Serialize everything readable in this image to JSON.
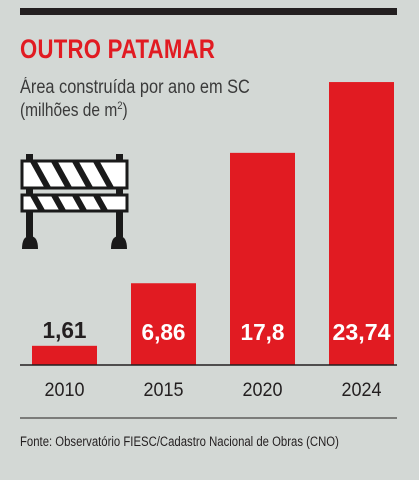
{
  "header": {
    "title": "OUTRO PATAMAR",
    "subtitle_line1": "Área construída por ano em SC",
    "subtitle_line2_prefix": "(milhões de m",
    "subtitle_line2_sup": "2",
    "subtitle_line2_suffix": ")"
  },
  "footer": {
    "source": "Fonte: Observatório FIESC/Cadastro Nacional de Obras (CNO)"
  },
  "colors": {
    "bar": "#e11b22",
    "background": "#d3d8d5",
    "text": "#231f20",
    "title": "#e11b22"
  },
  "icon": "construction-barrier-icon",
  "chart_data": {
    "type": "bar",
    "categories": [
      "2010",
      "2015",
      "2020",
      "2024"
    ],
    "values": [
      1.61,
      6.86,
      17.8,
      23.74
    ],
    "value_labels": [
      "1,61",
      "6,86",
      "17,8",
      "23,74"
    ],
    "xlabel": "",
    "ylabel": "",
    "ylim": [
      0,
      24.5
    ],
    "grid": false,
    "legend": "none"
  }
}
